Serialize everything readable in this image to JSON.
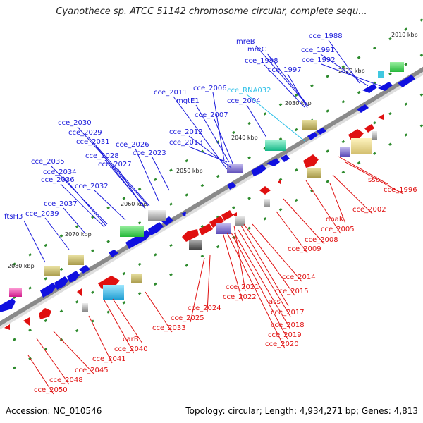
{
  "title": "Cyanothece sp. ATCC 51142 chromosome circular, complete sequ...",
  "footer": {
    "accession": "Accession: NC_010546",
    "summary": "Topology: circular; Length: 4,934,271 bp; Genes: 4,813"
  },
  "colors": {
    "forward_label": "#1a1adb",
    "reverse_label": "#e01010",
    "rna_label": "#2ec0e8",
    "backbone": "#8a8a8a",
    "tick": "#2e8b2e"
  },
  "ruler": [
    {
      "kbp": 2010,
      "text": "2010 kbp"
    },
    {
      "kbp": 2020,
      "text": "2020 kbp"
    },
    {
      "kbp": 2030,
      "text": "2030 kbp"
    },
    {
      "kbp": 2040,
      "text": "2040 kbp"
    },
    {
      "kbp": 2050,
      "text": "2050 kbp"
    },
    {
      "kbp": 2060,
      "text": "2060 kbp"
    },
    {
      "kbp": 2070,
      "text": "2070 kbp"
    },
    {
      "kbp": 2080,
      "text": "2080 kbp"
    }
  ],
  "forward_labels": [
    {
      "text": "cce_1988"
    },
    {
      "text": "mreB"
    },
    {
      "text": "cce_1991"
    },
    {
      "text": "mreC"
    },
    {
      "text": "cce_1998"
    },
    {
      "text": "cce_1992"
    },
    {
      "text": "cce_1997"
    },
    {
      "text": "cce_2011"
    },
    {
      "text": "cce_2006"
    },
    {
      "text": "mgtE1"
    },
    {
      "text": "cce_2004"
    },
    {
      "text": "cce_2007"
    },
    {
      "text": "cce_2030"
    },
    {
      "text": "cce_2029"
    },
    {
      "text": "cce_2012"
    },
    {
      "text": "cce_2031"
    },
    {
      "text": "cce_2026"
    },
    {
      "text": "cce_2013"
    },
    {
      "text": "cce_2028"
    },
    {
      "text": "cce_2023"
    },
    {
      "text": "cce_2035"
    },
    {
      "text": "cce_2027"
    },
    {
      "text": "cce_2034"
    },
    {
      "text": "cce_2036"
    },
    {
      "text": "cce_2032"
    },
    {
      "text": "cce_2037"
    },
    {
      "text": "ftsH3"
    },
    {
      "text": "cce_2039"
    }
  ],
  "rna_labels": [
    {
      "text": "cce_RNA032"
    }
  ],
  "reverse_labels": [
    {
      "text": "cce_1996"
    },
    {
      "text": "ssb"
    },
    {
      "text": "cce_2002"
    },
    {
      "text": "dnaK"
    },
    {
      "text": "cce_2005"
    },
    {
      "text": "cce_2008"
    },
    {
      "text": "cce_2009"
    },
    {
      "text": "cce_2014"
    },
    {
      "text": "cce_2021"
    },
    {
      "text": "cce_2015"
    },
    {
      "text": "cce_2022"
    },
    {
      "text": "acs"
    },
    {
      "text": "cce_2024"
    },
    {
      "text": "cce_2017"
    },
    {
      "text": "cce_2025"
    },
    {
      "text": "cce_2018"
    },
    {
      "text": "cce_2019"
    },
    {
      "text": "cce_2033"
    },
    {
      "text": "cce_2020"
    },
    {
      "text": "carB"
    },
    {
      "text": "cce_2040"
    },
    {
      "text": "cce_2041"
    },
    {
      "text": "cce_2045"
    },
    {
      "text": "cce_2048"
    },
    {
      "text": "cce_2050"
    }
  ]
}
